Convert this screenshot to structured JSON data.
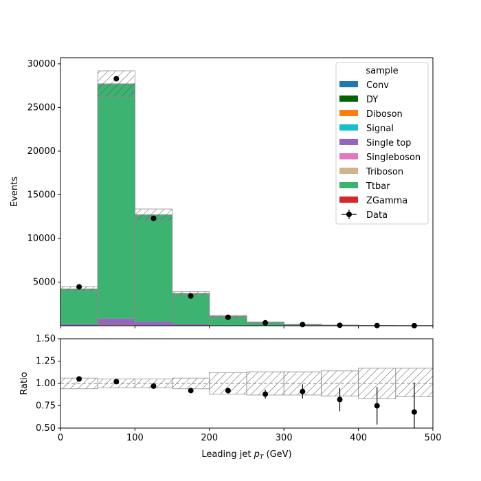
{
  "chart_data": [
    {
      "type": "bar",
      "stacked": true,
      "xlabel": "",
      "ylabel": "Events",
      "xlim": [
        0,
        500
      ],
      "ylim": [
        0,
        30700
      ],
      "yticks": [
        5000,
        10000,
        15000,
        20000,
        25000,
        30000
      ],
      "bin_edges": [
        0,
        50,
        100,
        150,
        200,
        250,
        300,
        350,
        400,
        450,
        500
      ],
      "legend_title": "sample",
      "legend_position": "top-right",
      "series": [
        {
          "name": "Conv",
          "color": "#1f77b4",
          "values": [
            0,
            0,
            0,
            0,
            0,
            0,
            0,
            0,
            0,
            0
          ]
        },
        {
          "name": "DY",
          "color": "#006400",
          "values": [
            15,
            40,
            20,
            8,
            3,
            1,
            0,
            0,
            0,
            0
          ]
        },
        {
          "name": "Diboson",
          "color": "#ff7f0e",
          "values": [
            10,
            30,
            25,
            10,
            4,
            2,
            1,
            0,
            0,
            0
          ]
        },
        {
          "name": "Signal",
          "color": "#17becf",
          "values": [
            0,
            0,
            0,
            0,
            0,
            0,
            0,
            0,
            0,
            0
          ]
        },
        {
          "name": "Single top",
          "color": "#9467bd",
          "values": [
            150,
            750,
            420,
            140,
            45,
            18,
            8,
            3,
            2,
            1
          ]
        },
        {
          "name": "Singleboson",
          "color": "#e377c2",
          "values": [
            0,
            0,
            0,
            0,
            0,
            0,
            0,
            0,
            0,
            0
          ]
        },
        {
          "name": "Triboson",
          "color": "#d2b48c",
          "values": [
            0,
            0,
            0,
            0,
            0,
            0,
            0,
            0,
            0,
            0
          ]
        },
        {
          "name": "Ttbar",
          "color": "#3cb371",
          "values": [
            4025,
            26880,
            12230,
            3540,
            1020,
            360,
            130,
            55,
            24,
            10
          ]
        },
        {
          "name": "ZGamma",
          "color": "#d62728",
          "values": [
            0,
            0,
            0,
            0,
            0,
            0,
            0,
            0,
            0,
            0
          ]
        }
      ],
      "mc_uncertainty": [
        270,
        1500,
        680,
        210,
        110,
        45,
        17,
        9,
        4,
        2
      ],
      "data": {
        "name": "Data",
        "color": "#000000",
        "x": [
          25,
          75,
          125,
          175,
          225,
          275,
          325,
          375,
          425,
          475
        ],
        "values": [
          4450,
          28300,
          12300,
          3400,
          960,
          330,
          130,
          52,
          22,
          8
        ]
      }
    },
    {
      "type": "scatter",
      "xlabel": "Leading jet  pT (GeV)",
      "ylabel": "Ratio",
      "xlim": [
        0,
        500
      ],
      "ylim": [
        0.5,
        1.5
      ],
      "xticks": [
        0,
        100,
        200,
        300,
        400,
        500
      ],
      "yticks": [
        0.5,
        0.75,
        1.0,
        1.25,
        1.5
      ],
      "reference_line": 1.0,
      "bin_edges": [
        0,
        50,
        100,
        150,
        200,
        250,
        300,
        350,
        400,
        450,
        500
      ],
      "band_low": [
        0.94,
        0.95,
        0.95,
        0.94,
        0.88,
        0.87,
        0.87,
        0.86,
        0.83,
        0.85
      ],
      "band_high": [
        1.06,
        1.05,
        1.05,
        1.06,
        1.12,
        1.13,
        1.13,
        1.14,
        1.17,
        1.17
      ],
      "x": [
        25,
        75,
        125,
        175,
        225,
        275,
        325,
        375,
        425,
        475
      ],
      "values": [
        1.05,
        1.02,
        0.97,
        0.92,
        0.92,
        0.88,
        0.91,
        0.82,
        0.75,
        0.68
      ],
      "errors": [
        0.02,
        0.01,
        0.01,
        0.02,
        0.03,
        0.05,
        0.08,
        0.13,
        0.21,
        0.33
      ]
    }
  ]
}
